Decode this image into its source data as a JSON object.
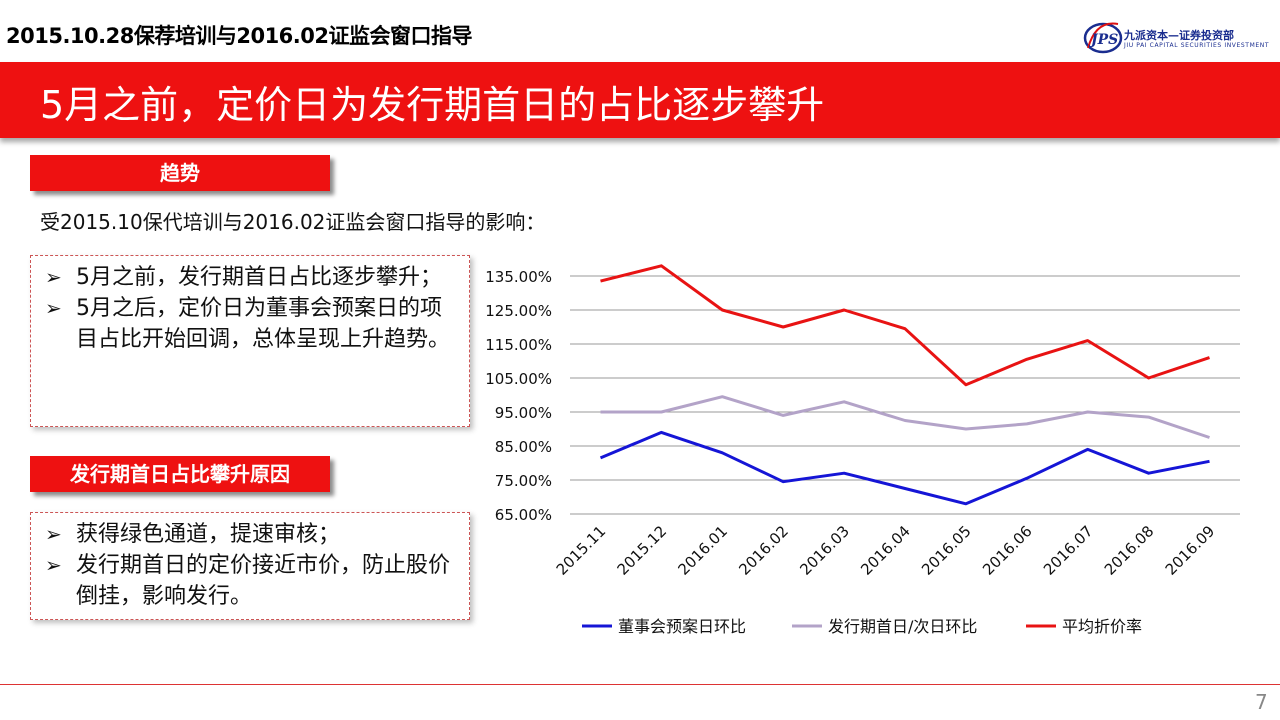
{
  "header": {
    "top_title": "2015.10.28保荐培训与2016.02证监会窗口指导",
    "logo_cn": "九派资本—证券投资部",
    "logo_en": "JIU PAI CAPITAL     SECURITIES INVESTMENT",
    "banner_title": "5月之前，定价日为发行期首日的占比逐步攀升"
  },
  "trend_tag": "趋势",
  "subtitle": "受2015.10保代培训与2016.02证监会窗口指导的影响：",
  "box1_bullets": [
    "5月之前，发行期首日占比逐步攀升；",
    "5月之后，定价日为董事会预案日的项目占比开始回调，总体呈现上升趋势。"
  ],
  "reason_tag": "发行期首日占比攀升原因",
  "box2_bullets": [
    "获得绿色通道，提速审核；",
    "发行期首日的定价接近市价，防止股价倒挂，影响发行。"
  ],
  "chart_data": {
    "type": "line",
    "categories": [
      "2015.11",
      "2015.12",
      "2016.01",
      "2016.02",
      "2016.03",
      "2016.04",
      "2016.05",
      "2016.06",
      "2016.07",
      "2016.08",
      "2016.09"
    ],
    "y_ticks": [
      "135.00%",
      "125.00%",
      "115.00%",
      "105.00%",
      "95.00%",
      "85.00%",
      "75.00%",
      "65.00%"
    ],
    "ylim": [
      65,
      135
    ],
    "grid": true,
    "legend_position": "bottom",
    "series": [
      {
        "name": "董事会预案日环比",
        "color": "#1515d6",
        "values": [
          81.5,
          89,
          83,
          74.5,
          77,
          72.5,
          68,
          75.5,
          84,
          77,
          80.5
        ]
      },
      {
        "name": "发行期首日/次日环比",
        "color": "#b3a3c8",
        "values": [
          95,
          95,
          99.5,
          94,
          98,
          92.5,
          90,
          91.5,
          95,
          93.5,
          87.5
        ]
      },
      {
        "name": "平均折价率",
        "color": "#e81313",
        "values": [
          133.5,
          138,
          125,
          120,
          125,
          119.5,
          103,
          110.5,
          116,
          105,
          111
        ]
      }
    ]
  },
  "page_number": "7"
}
